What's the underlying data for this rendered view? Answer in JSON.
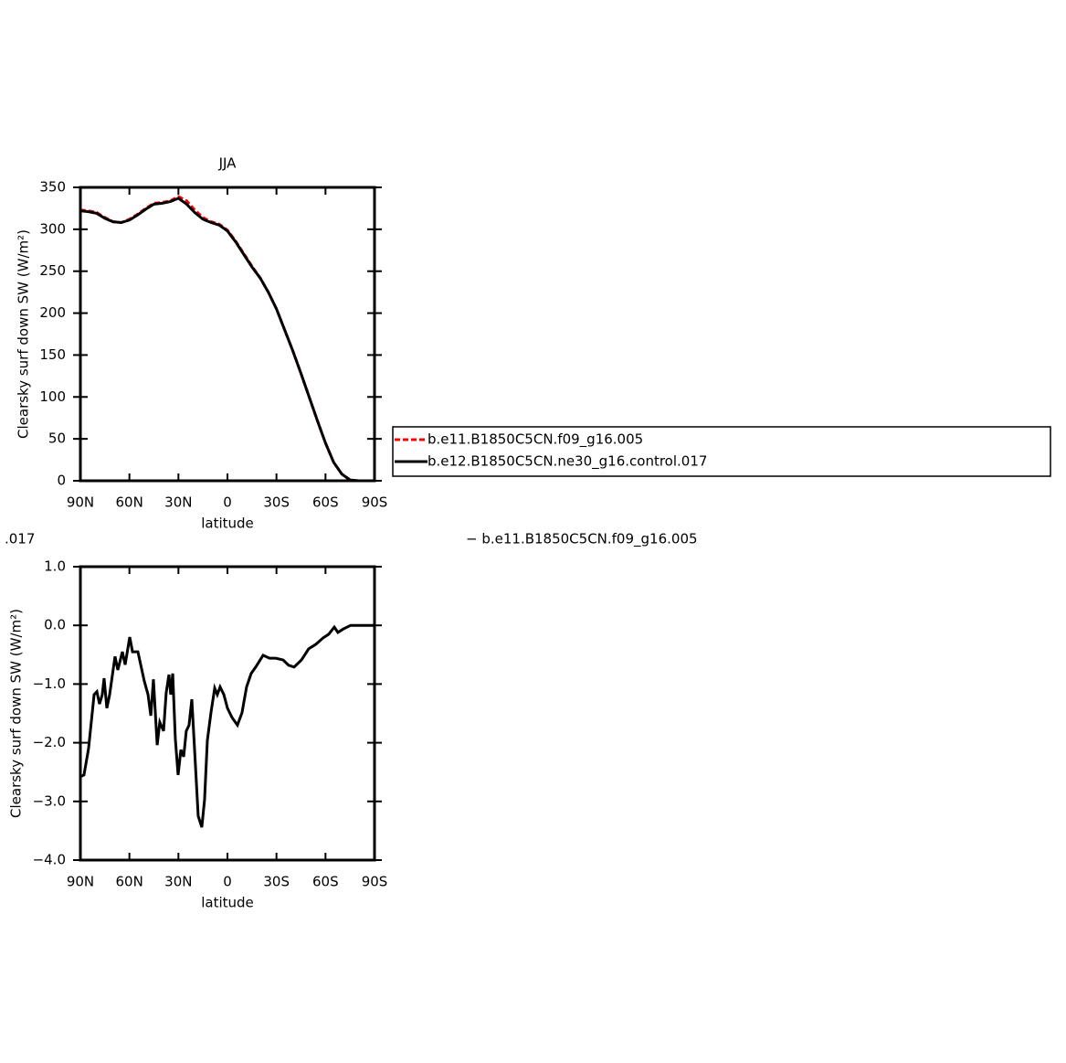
{
  "chart_data": [
    {
      "type": "line",
      "title": "JJA",
      "xlabel": "latitude",
      "ylabel": "Clearsky surf down SW (W/m²)",
      "xlim": [
        90,
        -90
      ],
      "ylim": [
        0,
        350
      ],
      "xticks": [
        {
          "value": 90,
          "label": "90N"
        },
        {
          "value": 60,
          "label": "60N"
        },
        {
          "value": 30,
          "label": "30N"
        },
        0,
        {
          "value": -30,
          "label": "30S"
        },
        {
          "value": -60,
          "label": "60S"
        },
        {
          "value": -90,
          "label": "90S"
        }
      ],
      "yticks": [
        0,
        50,
        100,
        150,
        200,
        250,
        300,
        350
      ],
      "legend": "right",
      "x": [
        90,
        85,
        80,
        75,
        70,
        65,
        60,
        55,
        50,
        45,
        40,
        35,
        30,
        25,
        20,
        15,
        10,
        5,
        0,
        -5,
        -10,
        -15,
        -20,
        -25,
        -30,
        -35,
        -40,
        -45,
        -50,
        -55,
        -60,
        -65,
        -70,
        -75,
        -80,
        -85,
        -90
      ],
      "series": [
        {
          "name": "b.e11.B1850C5CN.f09_g16.005",
          "color": "#ff0000",
          "dash": true,
          "values": [
            323,
            322,
            320,
            314,
            309,
            308,
            312,
            318,
            325,
            331,
            332,
            334,
            339,
            334,
            323,
            314,
            309,
            306,
            299,
            286,
            271,
            256,
            242,
            225,
            205,
            180,
            155,
            128,
            100,
            72,
            45,
            22,
            8,
            1,
            0,
            0,
            0
          ]
        },
        {
          "name": "b.e12.B1850C5CN.ne30_g16.control.017",
          "color": "#000000",
          "dash": false,
          "values": [
            322,
            321,
            319,
            313,
            309,
            308,
            311,
            317,
            324,
            330,
            331,
            333,
            337,
            330,
            320,
            312,
            308,
            305,
            298,
            285,
            270,
            255,
            242,
            225,
            205,
            180,
            155,
            128,
            100,
            72,
            45,
            22,
            8,
            1,
            0,
            0,
            0
          ]
        }
      ]
    },
    {
      "type": "line",
      "title_parts": [
        ".017",
        "− b.e11.B1850C5CN.f09_g16.005"
      ],
      "xlabel": "latitude",
      "ylabel": "Clearsky surf down SW (W/m²)",
      "xlim": [
        90,
        -90
      ],
      "ylim": [
        -4,
        1
      ],
      "xticks": [
        {
          "value": 90,
          "label": "90N"
        },
        {
          "value": 60,
          "label": "60N"
        },
        {
          "value": 30,
          "label": "30N"
        },
        0,
        {
          "value": -30,
          "label": "30S"
        },
        {
          "value": -60,
          "label": "60S"
        },
        {
          "value": -90,
          "label": "90S"
        }
      ],
      "yticks": [
        {
          "value": -4,
          "label": "−4.0"
        },
        {
          "value": -3,
          "label": "−3.0"
        },
        {
          "value": -2,
          "label": "−2.0"
        },
        {
          "value": -1,
          "label": "−1.0"
        },
        {
          "value": 0,
          "label": "0.0"
        },
        {
          "value": 1,
          "label": "1.0"
        }
      ],
      "x": [
        90,
        87.8,
        85,
        81.6,
        79.9,
        78.3,
        76.6,
        75.5,
        73.8,
        72.1,
        68.8,
        67.1,
        64.3,
        62.6,
        59.8,
        58.1,
        54.8,
        50.9,
        48.6,
        46.9,
        45.3,
        43.0,
        41.4,
        39.1,
        37.5,
        35.8,
        34.7,
        33.5,
        31.9,
        30.2,
        28.5,
        26.8,
        25.2,
        23.5,
        21.8,
        19.6,
        17.9,
        15.7,
        14.0,
        12.3,
        10.1,
        7.8,
        6.2,
        4.5,
        2.2,
        0,
        -2.8,
        -6.1,
        -8.9,
        -11.7,
        -14.5,
        -17.3,
        -21.8,
        -25.7,
        -29.6,
        -34.1,
        -37.4,
        -40.8,
        -45.3,
        -49.7,
        -54.2,
        -58.7,
        -62.0,
        -65.4,
        -67.6,
        -71.0,
        -75.4,
        -79.9,
        -90
      ],
      "series": [
        {
          "color": "#000000",
          "values": [
            -2.58,
            -2.55,
            -2.1,
            -1.18,
            -1.13,
            -1.34,
            -1.18,
            -0.9,
            -1.41,
            -1.18,
            -0.53,
            -0.76,
            -0.45,
            -0.67,
            -0.2,
            -0.45,
            -0.45,
            -0.95,
            -1.18,
            -1.54,
            -0.92,
            -2.04,
            -1.65,
            -1.8,
            -1.15,
            -0.84,
            -1.18,
            -0.82,
            -1.93,
            -2.55,
            -2.12,
            -2.24,
            -1.8,
            -1.7,
            -1.26,
            -2.38,
            -3.25,
            -3.44,
            -2.97,
            -1.96,
            -1.49,
            -1.07,
            -1.18,
            -1.05,
            -1.18,
            -1.41,
            -1.57,
            -1.7,
            -1.49,
            -1.05,
            -0.82,
            -0.71,
            -0.51,
            -0.56,
            -0.56,
            -0.59,
            -0.68,
            -0.71,
            -0.59,
            -0.4,
            -0.32,
            -0.21,
            -0.15,
            -0.03,
            -0.12,
            -0.06,
            0,
            0,
            0
          ]
        }
      ]
    }
  ]
}
